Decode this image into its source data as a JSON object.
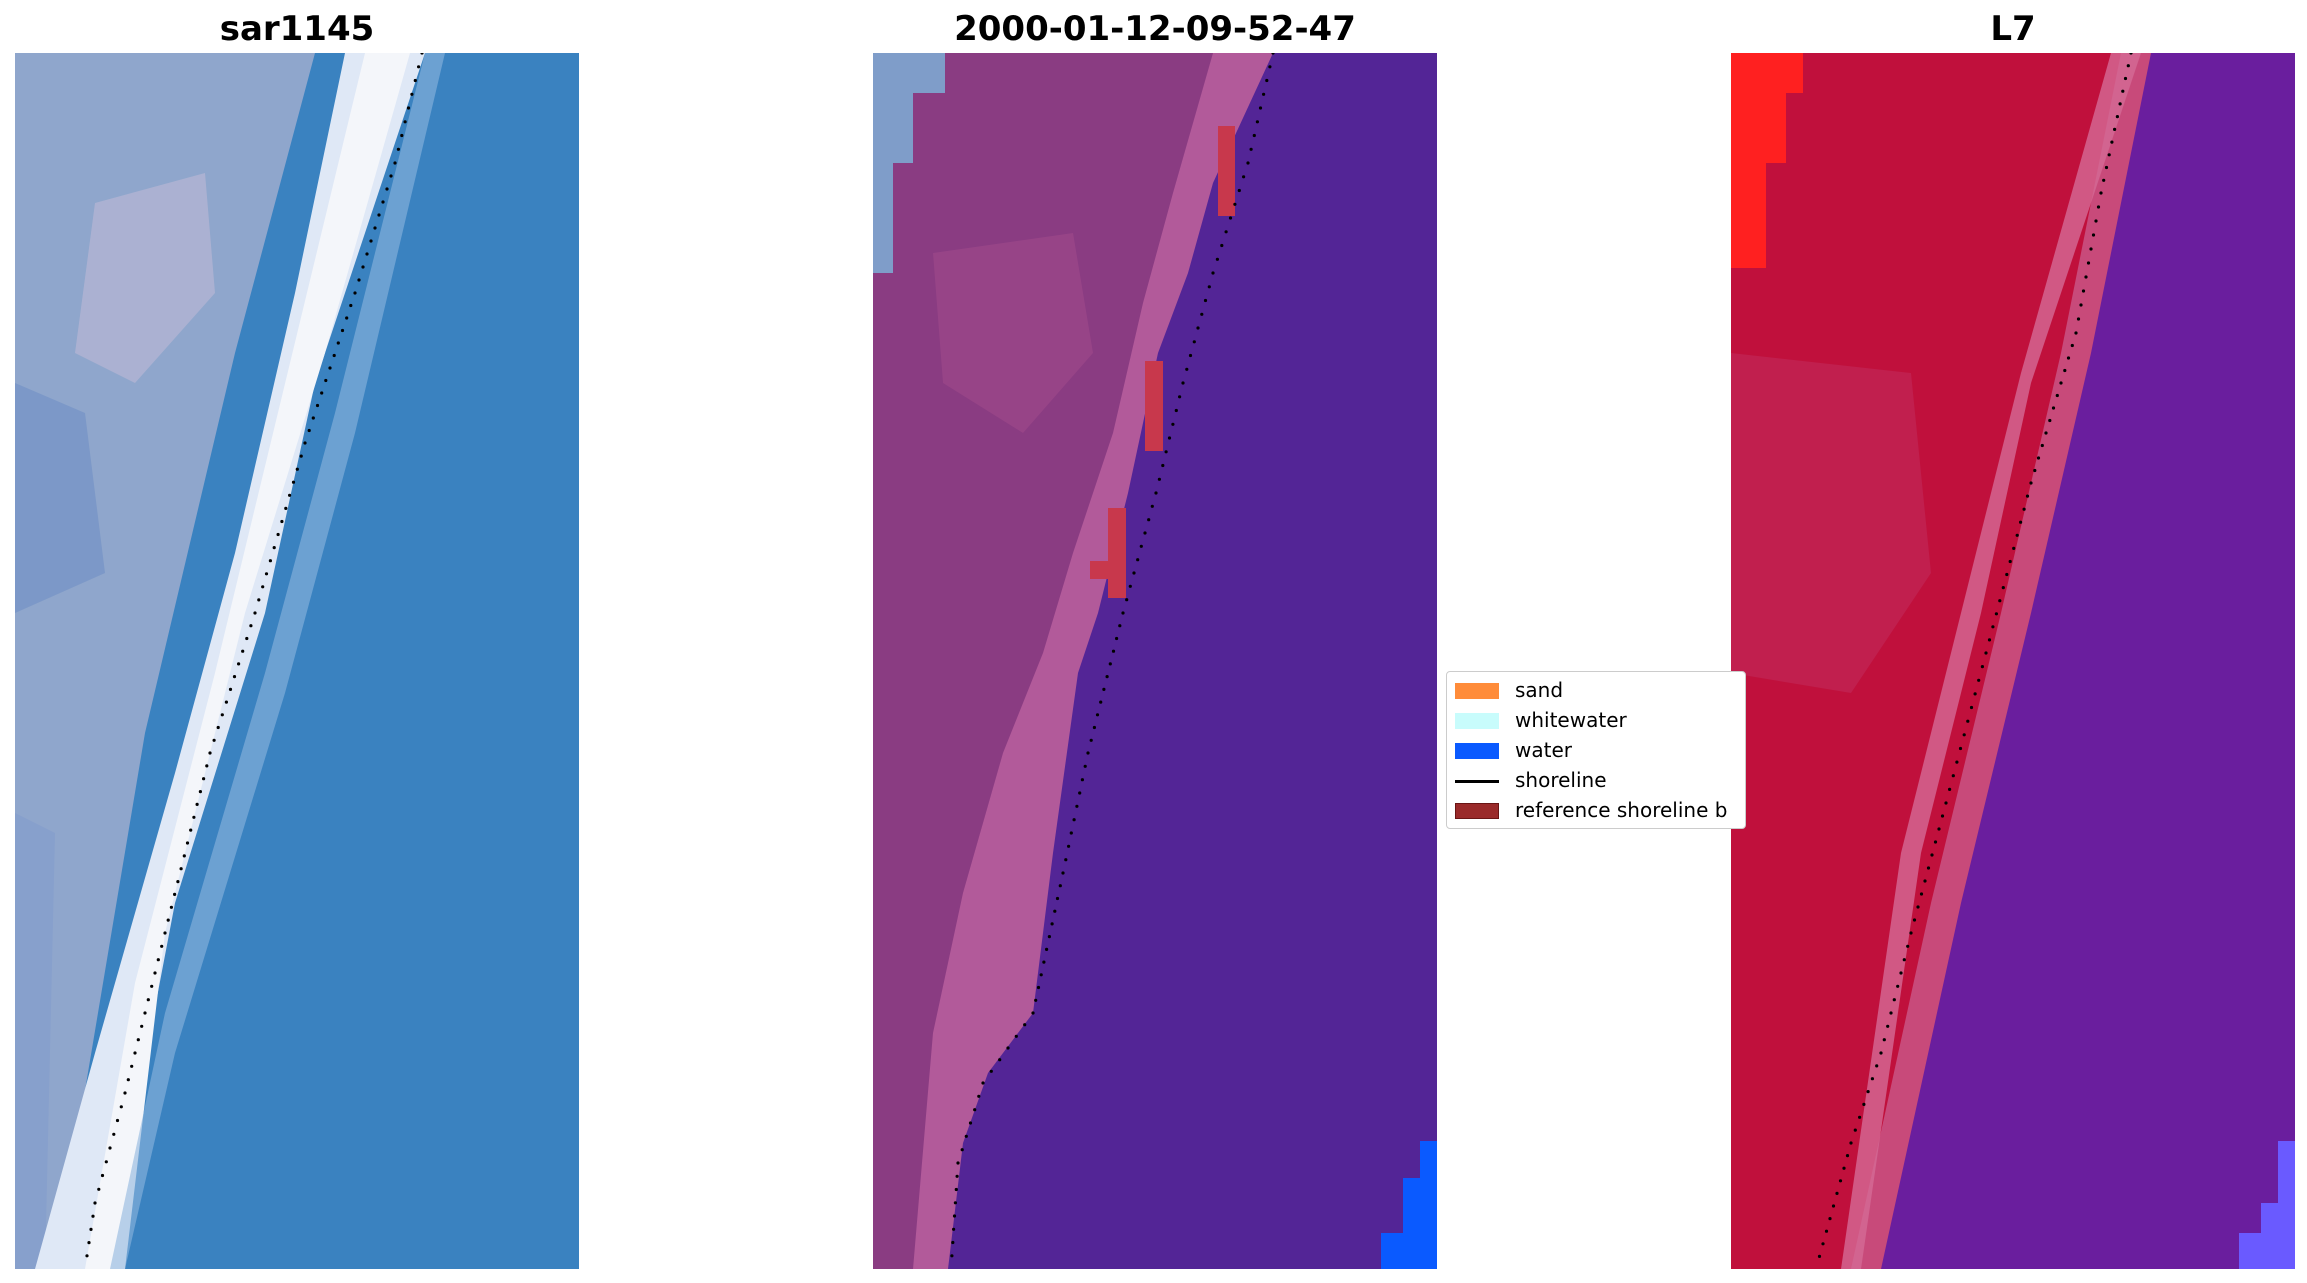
{
  "figure": {
    "panels": [
      {
        "title": "sar1145",
        "kind": "rgb"
      },
      {
        "title": "2000-01-12-09-52-47",
        "kind": "classified"
      },
      {
        "title": "L7",
        "kind": "index"
      }
    ]
  },
  "legend": {
    "items": [
      {
        "label": "sand",
        "color": "#ff8c3a",
        "type": "swatch"
      },
      {
        "label": "whitewater",
        "color": "#c8fcfc",
        "type": "swatch"
      },
      {
        "label": "water",
        "color": "#0a5aff",
        "type": "swatch"
      },
      {
        "label": "shoreline",
        "color": "#000000",
        "type": "line"
      },
      {
        "label": "reference shoreline b",
        "color": "#9a2a2a",
        "type": "swatch"
      }
    ]
  },
  "colors": {
    "rgb_water": "#3a82c0",
    "rgb_land": "#8fa6cc",
    "rgb_whitewater": "#eef2f8",
    "classified_land": "#8a3c82",
    "classified_wet": "#b25a9a",
    "classified_water": "#532596",
    "classified_ref": "#c8384c",
    "classified_blue": "#0a5aff",
    "index_land": "#c0103c",
    "index_transition": "#c84a7a",
    "index_water": "#6a1e9e",
    "index_hot": "#ff2020",
    "shoreline": "#000000"
  }
}
